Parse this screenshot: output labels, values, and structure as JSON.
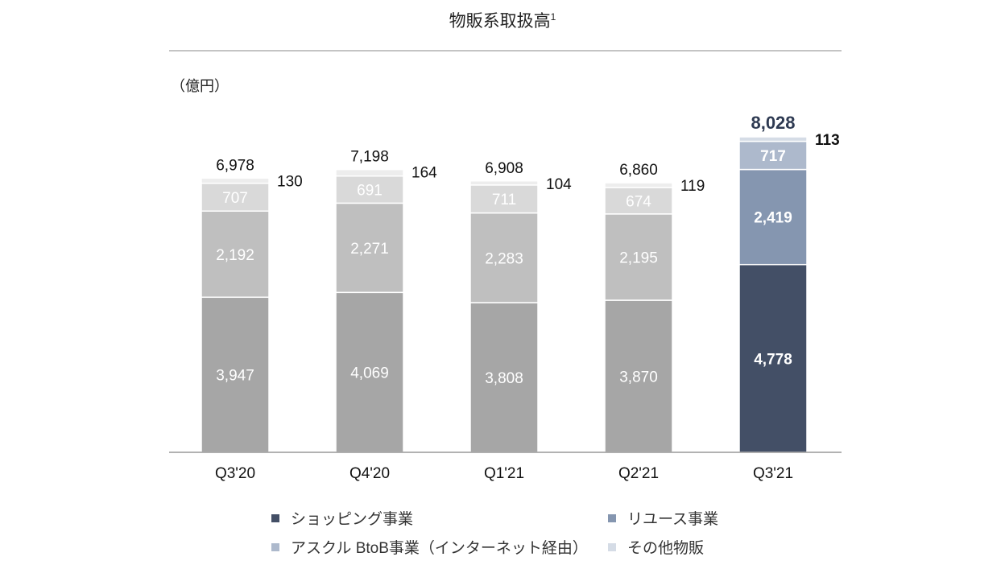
{
  "chart_data": {
    "type": "bar",
    "stacked": true,
    "title": "物販系取扱高",
    "title_footnote": "1",
    "unit_label": "（億円）",
    "categories": [
      "Q3'20",
      "Q4'20",
      "Q1'21",
      "Q2'21",
      "Q3'21"
    ],
    "totals": [
      "6,978",
      "7,198",
      "6,908",
      "6,860",
      "8,028"
    ],
    "series": [
      {
        "name": "ショッピング事業",
        "values": [
          3947,
          4069,
          3808,
          3870,
          4778
        ]
      },
      {
        "name": "リユース事業",
        "values": [
          2192,
          2271,
          2283,
          2195,
          2419
        ]
      },
      {
        "name": "アスクル BtoB事業（インターネット経由）",
        "values": [
          707,
          691,
          711,
          674,
          717
        ]
      },
      {
        "name": "その他物販",
        "values": [
          130,
          164,
          104,
          119,
          113
        ]
      }
    ],
    "ylim": [
      0,
      8500
    ],
    "grid": false,
    "legend_position": "bottom",
    "colors": {
      "past": [
        "#a6a6a6",
        "#bfbfbf",
        "#d9d9d9",
        "#ededed"
      ],
      "highlight": [
        "#434f66",
        "#8596b0",
        "#adb9cc",
        "#d5dce6"
      ],
      "legend": [
        "#434f66",
        "#8596b0",
        "#adb9cc",
        "#d5dce6"
      ],
      "highlight_total": "#2e3a52"
    }
  }
}
